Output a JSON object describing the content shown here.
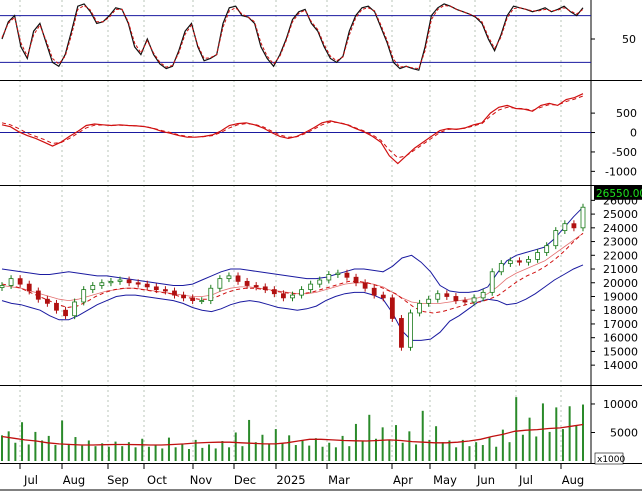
{
  "chart_data": [
    {
      "panel": "stochastic",
      "type": "line",
      "yticks": [
        50
      ],
      "reference_levels": [
        80,
        20
      ],
      "ylim": [
        0,
        100
      ],
      "series": [
        {
          "values": [
            50,
            72,
            80,
            40,
            25,
            60,
            70,
            45,
            20,
            15,
            30,
            60,
            92,
            95,
            85,
            70,
            72,
            80,
            90,
            88,
            70,
            40,
            30,
            50,
            30,
            18,
            12,
            15,
            35,
            60,
            70,
            40,
            22,
            25,
            30,
            70,
            90,
            92,
            80,
            78,
            70,
            40,
            25,
            15,
            30,
            50,
            75,
            85,
            88,
            70,
            60,
            40,
            25,
            20,
            28,
            60,
            80,
            90,
            92,
            85,
            65,
            45,
            20,
            12,
            15,
            12,
            10,
            40,
            80,
            90,
            95,
            92,
            88,
            85,
            82,
            78,
            70,
            50,
            35,
            55,
            80,
            92,
            90,
            88,
            85,
            87,
            90,
            85,
            88,
            92,
            85,
            80,
            90
          ]
        },
        {
          "values": [
            52,
            70,
            78,
            45,
            28,
            55,
            68,
            48,
            25,
            18,
            28,
            55,
            88,
            93,
            87,
            72,
            72,
            78,
            88,
            88,
            72,
            45,
            32,
            48,
            32,
            20,
            14,
            16,
            32,
            56,
            68,
            42,
            25,
            26,
            30,
            65,
            86,
            90,
            82,
            78,
            72,
            45,
            28,
            18,
            28,
            48,
            72,
            83,
            87,
            72,
            62,
            43,
            28,
            22,
            27,
            55,
            77,
            88,
            90,
            86,
            68,
            48,
            24,
            14,
            15,
            13,
            12,
            35,
            75,
            88,
            93,
            92,
            88,
            85,
            82,
            79,
            72,
            53,
            38,
            52,
            77,
            89,
            90,
            88,
            86,
            86,
            88,
            86,
            87,
            90,
            86,
            82,
            88
          ]
        }
      ]
    },
    {
      "panel": "macd",
      "type": "line",
      "yticks": [
        500,
        0,
        -500,
        -1000
      ],
      "ylim": [
        -1300,
        1250
      ],
      "series": [
        {
          "values": [
            200,
            150,
            20,
            -80,
            -150,
            -250,
            -350,
            -250,
            -100,
            30,
            180,
            220,
            200,
            180,
            200,
            180,
            170,
            150,
            100,
            30,
            -20,
            -80,
            -120,
            -120,
            -100,
            -60,
            40,
            180,
            230,
            250,
            200,
            120,
            0,
            -100,
            -150,
            -100,
            0,
            120,
            250,
            300,
            250,
            200,
            100,
            20,
            -100,
            -250,
            -600,
            -800,
            -600,
            -400,
            -250,
            -100,
            50,
            100,
            80,
            120,
            200,
            250,
            500,
            650,
            700,
            620,
            600,
            550,
            700,
            750,
            700,
            850,
            900,
            1000
          ]
        },
        {
          "values": [
            250,
            200,
            100,
            -20,
            -100,
            -180,
            -280,
            -260,
            -150,
            -20,
            120,
            190,
            195,
            185,
            190,
            180,
            170,
            155,
            110,
            50,
            0,
            -60,
            -100,
            -115,
            -105,
            -80,
            0,
            120,
            200,
            230,
            210,
            150,
            40,
            -60,
            -120,
            -110,
            -30,
            80,
            200,
            270,
            255,
            210,
            120,
            40,
            -60,
            -200,
            -450,
            -650,
            -600,
            -450,
            -300,
            -150,
            0,
            80,
            90,
            110,
            170,
            230,
            420,
            580,
            650,
            630,
            610,
            570,
            650,
            720,
            710,
            800,
            860,
            940
          ]
        }
      ]
    },
    {
      "panel": "price",
      "type": "candlestick",
      "price_label": "26550.00",
      "yticks": [
        26000,
        25000,
        24000,
        23000,
        22000,
        21000,
        20000,
        19000,
        18000,
        17000,
        16000,
        15000,
        14000
      ],
      "ylim": [
        12700,
        26900
      ],
      "close": [
        19800,
        20300,
        19900,
        19400,
        18800,
        18500,
        18000,
        17600,
        18600,
        19500,
        19800,
        20000,
        20100,
        20200,
        20000,
        19900,
        19700,
        19500,
        19400,
        19100,
        18900,
        18700,
        18700,
        19600,
        20300,
        20500,
        20100,
        19800,
        19700,
        19500,
        19200,
        18900,
        19100,
        19500,
        19900,
        20200,
        20600,
        20700,
        20400,
        20000,
        19600,
        19100,
        18900,
        17400,
        15300,
        17800,
        18500,
        18800,
        19200,
        19000,
        18700,
        18600,
        18900,
        19300,
        20800,
        21400,
        21600,
        21500,
        21700,
        22200,
        22700,
        23800,
        24300,
        24000,
        25500
      ],
      "bollinger": {
        "upper": [
          21000,
          20900,
          20800,
          20700,
          20600,
          20600,
          20700,
          20800,
          20700,
          20600,
          20500,
          20500,
          20400,
          20300,
          20200,
          20100,
          20000,
          19900,
          19800,
          19800,
          19900,
          20200,
          20500,
          20800,
          21000,
          21000,
          20900,
          20800,
          20700,
          20600,
          20500,
          20400,
          20300,
          20300,
          20400,
          20600,
          20800,
          21000,
          21000,
          20900,
          20800,
          21200,
          21800,
          22000,
          21500,
          20800,
          19800,
          19400,
          19300,
          19300,
          19400,
          19700,
          20700,
          21600,
          22000,
          22200,
          22400,
          22600,
          23200,
          24000,
          24800,
          25500
        ],
        "mid": [
          19800,
          19700,
          19600,
          19400,
          19200,
          19000,
          18800,
          18700,
          18800,
          19000,
          19200,
          19400,
          19500,
          19600,
          19600,
          19500,
          19400,
          19300,
          19200,
          19100,
          19000,
          19000,
          19100,
          19400,
          19600,
          19700,
          19700,
          19600,
          19500,
          19400,
          19300,
          19200,
          19200,
          19300,
          19500,
          19700,
          19900,
          20000,
          20000,
          19900,
          19700,
          19300,
          18900,
          18600,
          18500,
          18500,
          18500,
          18600,
          18700,
          18800,
          18900,
          19200,
          19700,
          20300,
          20700,
          21000,
          21300,
          21600,
          22100,
          22600,
          23100,
          23600
        ],
        "lower": [
          18700,
          18500,
          18400,
          18200,
          18000,
          17600,
          17300,
          17300,
          17600,
          18000,
          18400,
          18700,
          19000,
          19100,
          19100,
          19000,
          18900,
          18800,
          18700,
          18500,
          18200,
          18000,
          17900,
          18100,
          18400,
          18600,
          18700,
          18600,
          18400,
          18200,
          18100,
          18000,
          18100,
          18300,
          18700,
          19000,
          19200,
          19300,
          19300,
          19100,
          18800,
          17800,
          16500,
          15800,
          15800,
          15900,
          16400,
          17200,
          17600,
          18100,
          18600,
          18800,
          18700,
          18400,
          18500,
          18800,
          19200,
          19700,
          20200,
          20600,
          21000,
          21300
        ]
      },
      "moving_average": [
        19900,
        19800,
        19600,
        19300,
        19000,
        18700,
        18400,
        18200,
        18300,
        18600,
        19000,
        19300,
        19500,
        19600,
        19600,
        19500,
        19400,
        19300,
        19200,
        19000,
        18900,
        18800,
        18800,
        19000,
        19300,
        19500,
        19600,
        19600,
        19500,
        19400,
        19300,
        19200,
        19200,
        19300,
        19500,
        19700,
        19900,
        20100,
        20100,
        20000,
        19800,
        19500,
        19200,
        18700,
        18200,
        17900,
        17800,
        17900,
        18100,
        18300,
        18500,
        18600,
        18800,
        19100,
        19600,
        20100,
        20500,
        20800,
        21200,
        21700,
        22300,
        23000,
        23600
      ]
    },
    {
      "panel": "volume",
      "type": "bar",
      "yticks": [
        10000,
        5000
      ],
      "unit_label": "x1000",
      "ylim": [
        0,
        12800
      ],
      "x_labels": [
        "Jul",
        "Aug",
        "Sep",
        "Oct",
        "Nov",
        "Dec",
        "2025",
        "Mar",
        "Apr",
        "May",
        "Jun",
        "Jul",
        "Aug"
      ],
      "values": [
        4500,
        5200,
        3200,
        6800,
        2900,
        5100,
        3600,
        4400,
        2800,
        7100,
        3000,
        4200,
        2700,
        3600,
        2600,
        3100,
        2500,
        3400,
        2600,
        3300,
        2400,
        3900,
        2500,
        2800,
        2200,
        4100,
        2400,
        3000,
        2100,
        3700,
        2300,
        2900,
        2200,
        3500,
        2400,
        5000,
        2600,
        7200,
        3300,
        4600,
        2900,
        5600,
        3100,
        4500,
        2800,
        3600,
        2700,
        4000,
        2500,
        3200,
        2400,
        4400,
        2600,
        6500,
        3500,
        8100,
        3900,
        5900,
        3700,
        6300,
        3200,
        5200,
        2900,
        8800,
        3700,
        6100,
        3300,
        3600,
        2400,
        3700,
        2600,
        3300,
        2800,
        4200,
        2500,
        5500,
        3300,
        11200,
        4600,
        7600,
        4300,
        10100,
        5100,
        9400,
        5600,
        9600,
        6200,
        9900
      ],
      "moving_average": [
        4300,
        4000,
        3700,
        3500,
        3200,
        3000,
        2900,
        2800,
        2800,
        2850,
        2900,
        2900,
        2850,
        2800,
        2800,
        2900,
        3000,
        3150,
        3250,
        3300,
        3300,
        3200,
        3100,
        3000,
        3000,
        3200,
        3500,
        3800,
        3800,
        3700,
        3600,
        3550,
        3500,
        3600,
        3700,
        3600,
        3400,
        3300,
        3200,
        3200,
        3300,
        3500,
        3800,
        4300,
        4700,
        5200,
        5400,
        5500,
        5700,
        5800,
        6100,
        6400
      ]
    }
  ]
}
